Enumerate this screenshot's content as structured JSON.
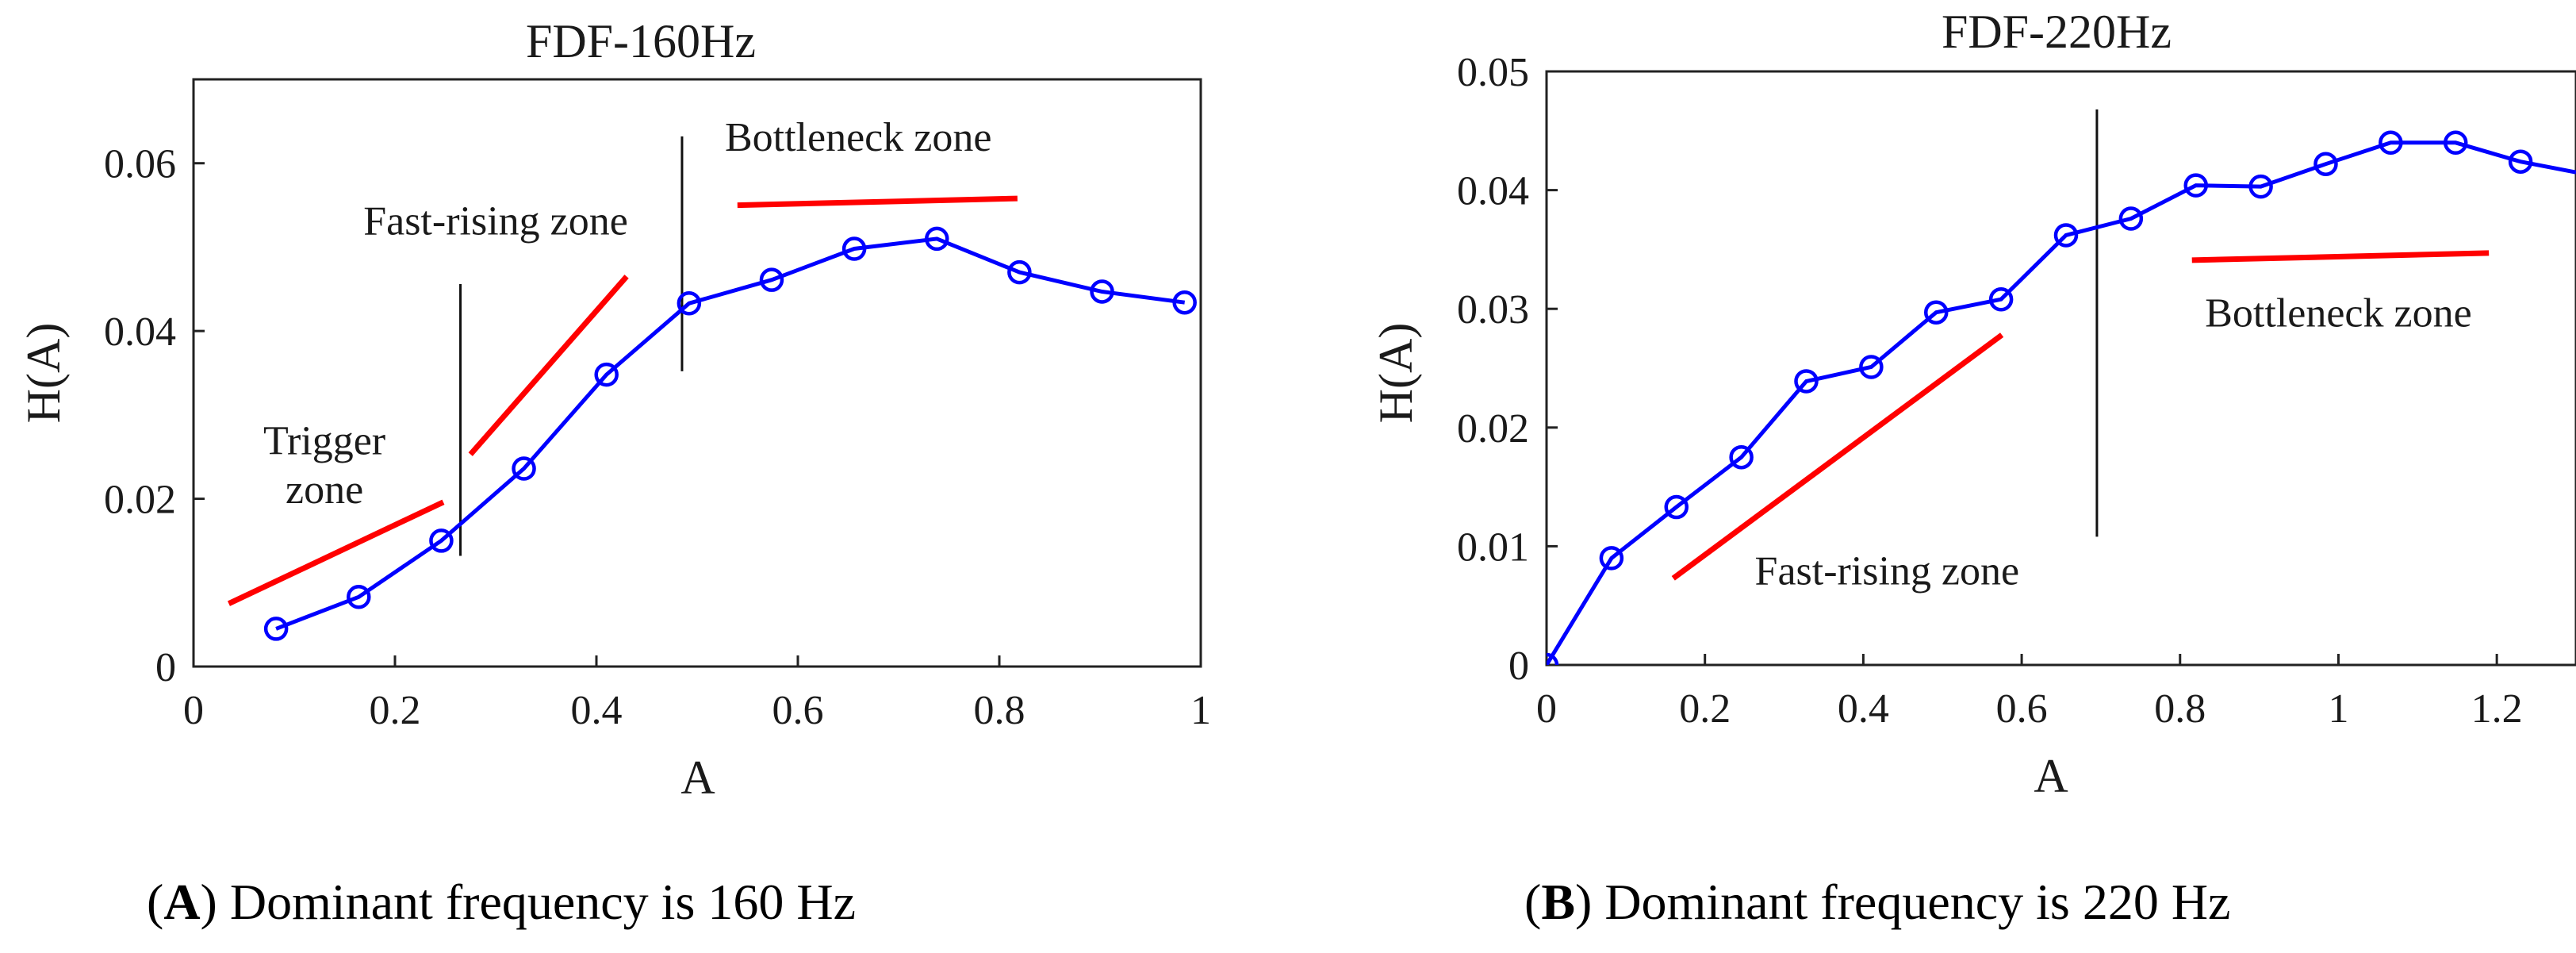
{
  "chart_data": [
    {
      "type": "line",
      "title": "FDF-160Hz",
      "xlabel": "A",
      "ylabel": "H(A)",
      "xlim": [
        0,
        1
      ],
      "ylim": [
        0,
        0.07
      ],
      "xticks": [
        0,
        0.2,
        0.4,
        0.6,
        0.8,
        1
      ],
      "xtick_labels": [
        "0",
        "0.2",
        "0.4",
        "0.6",
        "0.8",
        "1"
      ],
      "yticks": [
        0,
        0.02,
        0.04,
        0.06
      ],
      "ytick_labels": [
        "0",
        "0.02",
        "0.04",
        "0.06"
      ],
      "series": [
        {
          "name": "H(A)",
          "color": "#0000ff",
          "marker": "circle",
          "x": [
            0.082,
            0.164,
            0.246,
            0.328,
            0.41,
            0.492,
            0.574,
            0.656,
            0.738,
            0.82,
            0.902,
            0.984
          ],
          "y": [
            0.0045,
            0.0083,
            0.015,
            0.0236,
            0.0348,
            0.0433,
            0.0461,
            0.0498,
            0.051,
            0.047,
            0.0447,
            0.0434
          ]
        }
      ],
      "trend_lines": [
        {
          "x": [
            0.035,
            0.248
          ],
          "y": [
            0.0075,
            0.0196
          ],
          "color": "#ff0000"
        },
        {
          "x": [
            0.275,
            0.43
          ],
          "y": [
            0.0253,
            0.0465
          ],
          "color": "#ff0000"
        },
        {
          "x": [
            0.54,
            0.818
          ],
          "y": [
            0.055,
            0.0558
          ],
          "color": "#ff0000"
        }
      ],
      "dividers": [
        {
          "x": 0.265,
          "y": [
            0.0132,
            0.0456
          ]
        },
        {
          "x": 0.485,
          "y": [
            0.0352,
            0.0632
          ]
        }
      ],
      "annotations": [
        {
          "text": "Trigger",
          "x": 0.13,
          "y": 0.0253
        },
        {
          "text": "zone",
          "x": 0.13,
          "y": 0.0195
        },
        {
          "text": "Fast-rising zone",
          "x": 0.3,
          "y": 0.0515
        },
        {
          "text": "Bottleneck zone",
          "x": 0.66,
          "y": 0.0615
        }
      ],
      "caption_letter": "A",
      "caption_text": "Dominant frequency is 160 Hz"
    },
    {
      "type": "line",
      "title": "FDF-220Hz",
      "xlabel": "A",
      "ylabel": "H(A)",
      "xlim": [
        0,
        1.3
      ],
      "ylim": [
        0,
        0.05
      ],
      "xticks": [
        0,
        0.2,
        0.4,
        0.6,
        0.8,
        1,
        1.2
      ],
      "xtick_labels": [
        "0",
        "0.2",
        "0.4",
        "0.6",
        "0.8",
        "1",
        "1.2"
      ],
      "yticks": [
        0,
        0.01,
        0.02,
        0.03,
        0.04,
        0.05
      ],
      "ytick_labels": [
        "0",
        "0.01",
        "0.02",
        "0.03",
        "0.04",
        "0.05"
      ],
      "series": [
        {
          "name": "H(A)",
          "color": "#0000ff",
          "marker": "circle",
          "x": [
            0,
            0.082,
            0.164,
            0.246,
            0.328,
            0.41,
            0.492,
            0.574,
            0.656,
            0.738,
            0.82,
            0.902,
            0.984,
            1.066,
            1.148,
            1.23,
            1.3
          ],
          "y": [
            0.0,
            0.009,
            0.0133,
            0.0175,
            0.0239,
            0.0251,
            0.0297,
            0.0308,
            0.0362,
            0.0376,
            0.0404,
            0.0403,
            0.0422,
            0.044,
            0.044,
            0.0424,
            0.0415
          ]
        }
      ],
      "marker_count": 16,
      "trend_lines": [
        {
          "x": [
            0.16,
            0.575
          ],
          "y": [
            0.0073,
            0.0278
          ],
          "color": "#ff0000"
        },
        {
          "x": [
            0.815,
            1.19
          ],
          "y": [
            0.0341,
            0.0347
          ],
          "color": "#ff0000"
        }
      ],
      "dividers": [
        {
          "x": 0.695,
          "y": [
            0.0108,
            0.0468
          ]
        }
      ],
      "annotations": [
        {
          "text": "Fast-rising zone",
          "x": 0.43,
          "y": 0.0068
        },
        {
          "text": "Bottleneck zone",
          "x": 1.0,
          "y": 0.0285
        }
      ],
      "caption_letter": "B",
      "caption_text": "Dominant frequency is 220 Hz"
    }
  ]
}
